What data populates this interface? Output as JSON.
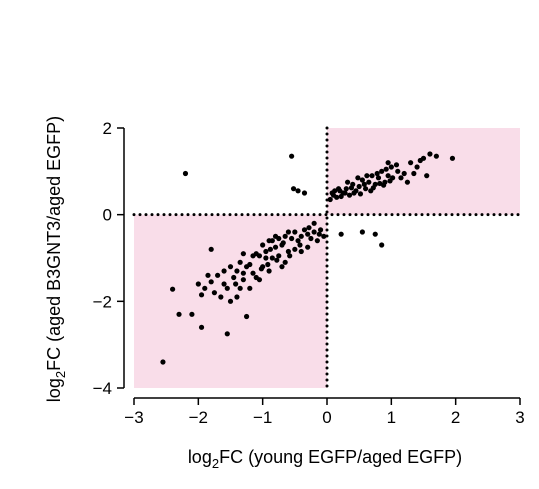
{
  "chart_data": {
    "type": "scatter",
    "title": "",
    "xlabel": {
      "prefix": "log",
      "sub": "2",
      "suffix": "FC (young EGFP/aged EGFP)"
    },
    "ylabel": {
      "prefix": "log",
      "sub": "2",
      "suffix": "FC (aged B3GNT3/aged EGFP)"
    },
    "xlim": [
      -3,
      3
    ],
    "ylim": [
      -4,
      2
    ],
    "xticks": [
      -3,
      -2,
      -1,
      0,
      1,
      2,
      3
    ],
    "xtick_labels": [
      "−3",
      "−2",
      "−1",
      "0",
      "1",
      "2",
      "3"
    ],
    "yticks": [
      -4,
      -2,
      0,
      2
    ],
    "ytick_labels": [
      "−4",
      "−2",
      "0",
      "2"
    ],
    "grid": false,
    "reference_lines": {
      "x": 0,
      "y": 0,
      "style": "dotted"
    },
    "highlight_quadrants": [
      {
        "x": [
          0,
          3
        ],
        "y": [
          0,
          2
        ],
        "color": "#f9dde9"
      },
      {
        "x": [
          -3,
          0
        ],
        "y": [
          -4,
          0
        ],
        "color": "#f9dde9"
      }
    ],
    "point_color": "#000000",
    "series": [
      {
        "points": [
          [
            -2.2,
            0.95
          ],
          [
            -0.55,
            1.35
          ],
          [
            -0.52,
            0.6
          ],
          [
            -0.45,
            0.55
          ],
          [
            -0.35,
            0.5
          ],
          [
            0.22,
            -0.45
          ],
          [
            0.55,
            -0.4
          ],
          [
            0.75,
            -0.45
          ],
          [
            0.85,
            -0.7
          ],
          [
            -2.55,
            -3.4
          ],
          [
            -2.4,
            -1.72
          ],
          [
            -2.3,
            -2.3
          ],
          [
            -2.1,
            -2.3
          ],
          [
            -1.95,
            -2.6
          ],
          [
            -1.8,
            -0.8
          ],
          [
            -1.55,
            -2.75
          ],
          [
            -1.25,
            -2.35
          ],
          [
            -1.6,
            -1.6
          ],
          [
            -1.5,
            -1.2
          ],
          [
            -1.4,
            -1.9
          ],
          [
            -1.3,
            -1.5
          ],
          [
            -1.2,
            -1.7
          ],
          [
            -1.1,
            -0.9
          ],
          [
            -1.0,
            -1.2
          ],
          [
            -0.9,
            -0.6
          ],
          [
            -0.85,
            -1.0
          ],
          [
            -0.8,
            -0.5
          ],
          [
            -0.7,
            -0.7
          ],
          [
            -0.65,
            -1.1
          ],
          [
            -0.6,
            -0.4
          ],
          [
            -0.5,
            -0.8
          ],
          [
            -0.45,
            -0.6
          ],
          [
            -0.4,
            -0.5
          ],
          [
            -0.35,
            -0.35
          ],
          [
            -0.3,
            -0.45
          ],
          [
            -0.25,
            -0.55
          ],
          [
            -0.2,
            -0.4
          ],
          [
            -0.15,
            -0.6
          ],
          [
            -0.1,
            -0.35
          ],
          [
            -0.05,
            -0.5
          ],
          [
            -1.75,
            -1.8
          ],
          [
            -1.7,
            -1.4
          ],
          [
            -1.65,
            -1.9
          ],
          [
            -1.45,
            -1.45
          ],
          [
            -1.35,
            -1.1
          ],
          [
            -1.15,
            -1.35
          ],
          [
            -1.05,
            -1.5
          ],
          [
            -0.95,
            -0.85
          ],
          [
            -0.75,
            -0.95
          ],
          [
            -0.55,
            -0.55
          ],
          [
            -1.9,
            -1.7
          ],
          [
            -1.85,
            -1.4
          ],
          [
            -1.5,
            -2.0
          ],
          [
            -1.3,
            -0.9
          ],
          [
            -1.0,
            -0.7
          ],
          [
            -0.9,
            -1.3
          ],
          [
            -0.7,
            -1.2
          ],
          [
            -0.6,
            -0.85
          ],
          [
            -0.3,
            -0.75
          ],
          [
            -0.2,
            -0.2
          ],
          [
            -1.35,
            -1.7
          ],
          [
            -1.2,
            -1.15
          ],
          [
            -1.1,
            -1.45
          ],
          [
            -0.95,
            -1.0
          ],
          [
            -0.8,
            -0.75
          ],
          [
            -0.65,
            -0.5
          ],
          [
            -0.5,
            -0.4
          ],
          [
            -0.4,
            -0.85
          ],
          [
            -1.6,
            -1.3
          ],
          [
            -1.4,
            -1.3
          ],
          [
            -1.25,
            -1.2
          ],
          [
            -1.05,
            -0.95
          ],
          [
            -0.85,
            -0.6
          ],
          [
            -0.75,
            -0.55
          ],
          [
            -0.58,
            -0.95
          ],
          [
            -2.0,
            -1.6
          ],
          [
            -1.95,
            -1.85
          ],
          [
            -1.8,
            -1.55
          ],
          [
            -1.55,
            -1.7
          ],
          [
            -1.42,
            -1.6
          ],
          [
            -1.3,
            -1.35
          ],
          [
            -1.15,
            -0.95
          ],
          [
            -1.02,
            -1.25
          ],
          [
            -0.88,
            -0.8
          ],
          [
            -0.68,
            -0.65
          ],
          [
            -0.42,
            -0.7
          ],
          [
            -0.28,
            -0.3
          ],
          [
            -0.12,
            -0.45
          ],
          [
            -0.92,
            -1.15
          ],
          [
            -0.78,
            -1.05
          ],
          [
            0.05,
            0.35
          ],
          [
            0.1,
            0.45
          ],
          [
            0.15,
            0.4
          ],
          [
            0.2,
            0.55
          ],
          [
            0.25,
            0.5
          ],
          [
            0.3,
            0.6
          ],
          [
            0.35,
            0.45
          ],
          [
            0.4,
            0.7
          ],
          [
            0.45,
            0.55
          ],
          [
            0.5,
            0.65
          ],
          [
            0.55,
            0.8
          ],
          [
            0.6,
            0.6
          ],
          [
            0.65,
            0.75
          ],
          [
            0.7,
            0.9
          ],
          [
            0.75,
            0.7
          ],
          [
            0.8,
            0.85
          ],
          [
            0.85,
            1.0
          ],
          [
            0.9,
            0.75
          ],
          [
            0.95,
            0.9
          ],
          [
            1.0,
            1.1
          ],
          [
            1.1,
            1.0
          ],
          [
            1.2,
            0.95
          ],
          [
            1.3,
            1.2
          ],
          [
            1.4,
            1.1
          ],
          [
            1.5,
            1.3
          ],
          [
            1.6,
            1.4
          ],
          [
            1.7,
            1.35
          ],
          [
            1.95,
            1.3
          ],
          [
            1.55,
            0.9
          ],
          [
            1.25,
            0.75
          ],
          [
            0.12,
            0.55
          ],
          [
            0.22,
            0.42
          ],
          [
            0.32,
            0.75
          ],
          [
            0.42,
            0.5
          ],
          [
            0.52,
            0.48
          ],
          [
            0.62,
            0.9
          ],
          [
            0.72,
            0.62
          ],
          [
            0.82,
            0.72
          ],
          [
            0.92,
            1.05
          ],
          [
            1.02,
            0.85
          ],
          [
            0.18,
            0.6
          ],
          [
            0.28,
            0.5
          ],
          [
            0.38,
            0.62
          ],
          [
            0.48,
            0.85
          ],
          [
            0.58,
            0.7
          ],
          [
            0.68,
            0.55
          ],
          [
            0.78,
            0.95
          ],
          [
            0.88,
            0.68
          ],
          [
            0.98,
            0.78
          ],
          [
            1.08,
            1.15
          ],
          [
            1.15,
            0.85
          ],
          [
            1.35,
            0.95
          ],
          [
            1.45,
            1.25
          ],
          [
            0.08,
            0.5
          ],
          [
            0.95,
            1.2
          ]
        ]
      }
    ]
  }
}
